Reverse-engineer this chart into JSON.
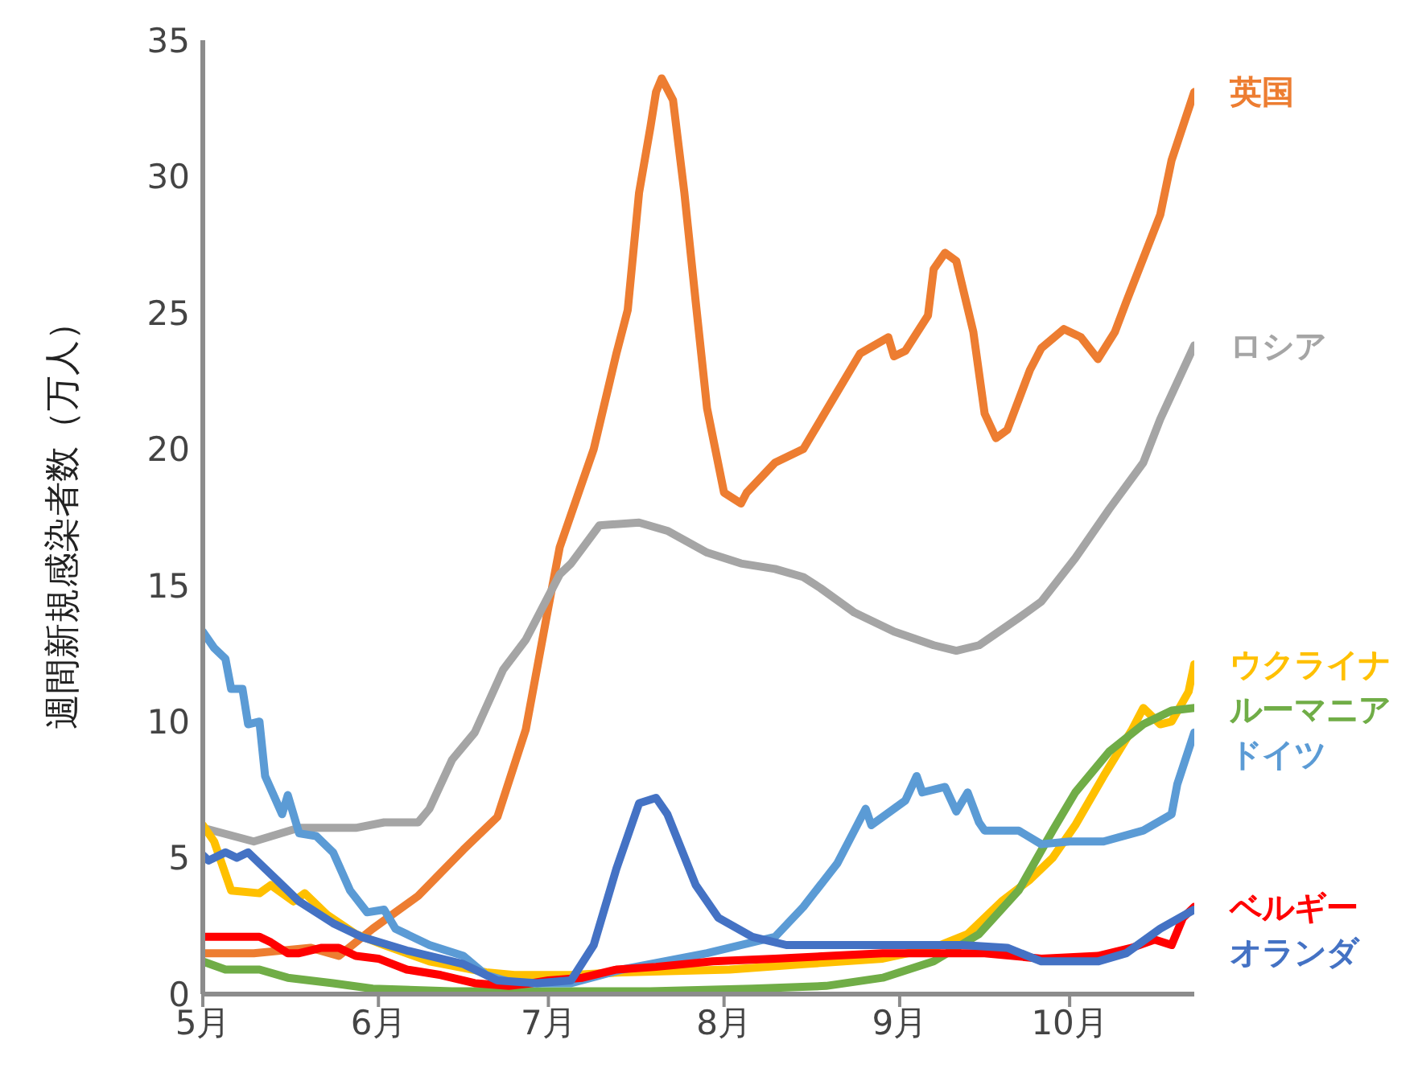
{
  "chart_data": {
    "type": "line",
    "ylabel": "週間新規感染者数（万人）",
    "xlim": [
      "--05-01",
      "--10-23"
    ],
    "xticks": [
      {
        "value": "--05-01",
        "label": "5月"
      },
      {
        "value": "--06-01",
        "label": "6月"
      },
      {
        "value": "--07-01",
        "label": "7月"
      },
      {
        "value": "--08-01",
        "label": "8月"
      },
      {
        "value": "--09-01",
        "label": "9月"
      },
      {
        "value": "--10-01",
        "label": "10月"
      }
    ],
    "ylim": [
      0,
      35
    ],
    "yticks": [
      0,
      5,
      10,
      15,
      20,
      25,
      30,
      35
    ],
    "marker": "none",
    "line_style": "solid",
    "series": [
      {
        "name": "英国",
        "color": "#ed7d31",
        "x": [
          "--05-01",
          "--05-10",
          "--05-20",
          "--05-25",
          "--05-31",
          "--06-08",
          "--06-16",
          "--06-22",
          "--06-27",
          "--07-01",
          "--07-03",
          "--07-05",
          "--07-09",
          "--07-13",
          "--07-15",
          "--07-17",
          "--07-19",
          "--07-20",
          "--07-21",
          "--07-23",
          "--07-25",
          "--07-27",
          "--07-29",
          "--08-01",
          "--08-04",
          "--08-05",
          "--08-10",
          "--08-15",
          "--08-21",
          "--08-25",
          "--08-30",
          "--08-31",
          "--09-02",
          "--09-06",
          "--09-07",
          "--09-09",
          "--09-11",
          "--09-14",
          "--09-16",
          "--09-18",
          "--09-20",
          "--09-24",
          "--09-26",
          "--09-30",
          "--10-03",
          "--10-06",
          "--10-09",
          "--10-11",
          "--10-14",
          "--10-17",
          "--10-19",
          "--10-23"
        ],
        "values": [
          1.5,
          1.5,
          1.7,
          1.4,
          2.4,
          3.6,
          5.3,
          6.5,
          9.7,
          14.2,
          16.4,
          17.6,
          20.0,
          23.5,
          25.1,
          29.4,
          31.8,
          33.1,
          33.6,
          32.8,
          29.4,
          25.4,
          21.5,
          18.4,
          18.0,
          18.4,
          19.5,
          20.0,
          22.1,
          23.5,
          24.1,
          23.4,
          23.6,
          24.9,
          26.6,
          27.2,
          26.9,
          24.3,
          21.3,
          20.4,
          20.7,
          22.9,
          23.7,
          24.4,
          24.1,
          23.3,
          24.3,
          25.4,
          27.0,
          28.6,
          30.6,
          33.1
        ]
      },
      {
        "name": "ロシア",
        "color": "#a5a5a5",
        "x": [
          "--05-01",
          "--05-10",
          "--05-18",
          "--05-28",
          "--06-02",
          "--06-08",
          "--06-10",
          "--06-14",
          "--06-18",
          "--06-23",
          "--06-27",
          "--07-03",
          "--07-05",
          "--07-10",
          "--07-17",
          "--07-22",
          "--07-29",
          "--08-04",
          "--08-10",
          "--08-15",
          "--08-18",
          "--08-24",
          "--08-31",
          "--09-07",
          "--09-11",
          "--09-15",
          "--09-22",
          "--09-26",
          "--10-02",
          "--10-08",
          "--10-14",
          "--10-17",
          "--10-23"
        ],
        "values": [
          6.1,
          5.6,
          6.1,
          6.1,
          6.3,
          6.3,
          6.8,
          8.6,
          9.6,
          11.9,
          13.0,
          15.4,
          15.8,
          17.2,
          17.3,
          17.0,
          16.2,
          15.8,
          15.6,
          15.3,
          14.9,
          14.0,
          13.3,
          12.8,
          12.6,
          12.8,
          13.8,
          14.4,
          16.0,
          17.8,
          19.5,
          21.1,
          23.8
        ]
      },
      {
        "name": "ウクライナ",
        "color": "#ffc000",
        "x": [
          "--05-01",
          "--05-03",
          "--05-06",
          "--05-11",
          "--05-13",
          "--05-17",
          "--05-19",
          "--05-23",
          "--05-28",
          "--06-02",
          "--06-10",
          "--06-20",
          "--06-25",
          "--07-05",
          "--07-14",
          "--08-02",
          "--08-15",
          "--08-29",
          "--09-07",
          "--09-13",
          "--09-19",
          "--09-24",
          "--09-28",
          "--10-02",
          "--10-07",
          "--10-12",
          "--10-14",
          "--10-17",
          "--10-19",
          "--10-22",
          "--10-23"
        ],
        "values": [
          6.2,
          5.6,
          3.8,
          3.7,
          4.0,
          3.4,
          3.7,
          2.9,
          2.2,
          1.8,
          1.2,
          0.8,
          0.7,
          0.7,
          0.8,
          0.9,
          1.1,
          1.3,
          1.7,
          2.2,
          3.4,
          4.2,
          5.0,
          6.2,
          8.0,
          9.7,
          10.5,
          9.9,
          10.0,
          11.1,
          12.1
        ]
      },
      {
        "name": "ルーマニア",
        "color": "#70ad47",
        "x": [
          "--05-01",
          "--05-05",
          "--05-11",
          "--05-16",
          "--05-24",
          "--05-31",
          "--06-14",
          "--07-19",
          "--08-06",
          "--08-19",
          "--08-29",
          "--09-07",
          "--09-15",
          "--09-22",
          "--09-28",
          "--10-02",
          "--10-08",
          "--10-14",
          "--10-19",
          "--10-23"
        ],
        "values": [
          1.2,
          0.9,
          0.9,
          0.6,
          0.4,
          0.2,
          0.1,
          0.1,
          0.2,
          0.3,
          0.6,
          1.2,
          2.2,
          3.8,
          6.0,
          7.4,
          8.9,
          9.9,
          10.4,
          10.5
        ]
      },
      {
        "name": "ドイツ",
        "color": "#5b9bd5",
        "x": [
          "--05-01",
          "--05-03",
          "--05-05",
          "--05-06",
          "--05-08",
          "--05-09",
          "--05-11",
          "--05-12",
          "--05-15",
          "--05-16",
          "--05-18",
          "--05-21",
          "--05-24",
          "--05-27",
          "--05-30",
          "--06-02",
          "--06-04",
          "--06-10",
          "--06-16",
          "--06-20",
          "--06-25",
          "--07-05",
          "--07-14",
          "--07-29",
          "--08-10",
          "--08-15",
          "--08-21",
          "--08-24",
          "--08-26",
          "--08-27",
          "--09-02",
          "--09-04",
          "--09-05",
          "--09-09",
          "--09-11",
          "--09-13",
          "--09-15",
          "--09-16",
          "--09-22",
          "--09-26",
          "--10-01",
          "--10-07",
          "--10-14",
          "--10-19",
          "--10-20",
          "--10-23"
        ],
        "values": [
          13.3,
          12.7,
          12.3,
          11.2,
          11.2,
          9.9,
          10.0,
          8.0,
          6.6,
          7.3,
          5.9,
          5.8,
          5.2,
          3.8,
          3.0,
          3.1,
          2.4,
          1.8,
          1.4,
          0.7,
          0.4,
          0.4,
          0.9,
          1.5,
          2.1,
          3.2,
          4.8,
          6.0,
          6.8,
          6.2,
          7.1,
          8.0,
          7.4,
          7.6,
          6.7,
          7.4,
          6.3,
          6.0,
          6.0,
          5.5,
          5.6,
          5.6,
          6.0,
          6.6,
          7.7,
          9.6
        ]
      },
      {
        "name": "ベルギー",
        "color": "#ff0000",
        "x": [
          "--05-01",
          "--05-11",
          "--05-13",
          "--05-16",
          "--05-18",
          "--05-22",
          "--05-25",
          "--05-28",
          "--06-01",
          "--06-06",
          "--06-12",
          "--06-18",
          "--06-24",
          "--06-28",
          "--07-01",
          "--07-07",
          "--07-13",
          "--07-20",
          "--07-30",
          "--08-10",
          "--08-29",
          "--09-16",
          "--09-26",
          "--10-06",
          "--10-12",
          "--10-16",
          "--10-19",
          "--10-21",
          "--10-23"
        ],
        "values": [
          2.1,
          2.1,
          1.9,
          1.5,
          1.5,
          1.7,
          1.7,
          1.4,
          1.3,
          0.9,
          0.7,
          0.4,
          0.3,
          0.4,
          0.5,
          0.6,
          0.9,
          1.0,
          1.2,
          1.3,
          1.5,
          1.5,
          1.3,
          1.4,
          1.7,
          2.0,
          1.8,
          2.8,
          3.2
        ]
      },
      {
        "name": "オランダ",
        "color": "#4472c4",
        "x": [
          "--05-01",
          "--05-02",
          "--05-05",
          "--05-07",
          "--05-09",
          "--05-12",
          "--05-14",
          "--05-18",
          "--05-24",
          "--05-29",
          "--06-06",
          "--06-16",
          "--06-22",
          "--06-29",
          "--07-05",
          "--07-09",
          "--07-13",
          "--07-17",
          "--07-20",
          "--07-22",
          "--07-27",
          "--07-31",
          "--08-06",
          "--08-12",
          "--08-24",
          "--09-12",
          "--09-20",
          "--09-26",
          "--10-06",
          "--10-11",
          "--10-17",
          "--10-23"
        ],
        "values": [
          5.1,
          4.9,
          5.2,
          5.0,
          5.2,
          4.6,
          4.2,
          3.4,
          2.6,
          2.1,
          1.6,
          1.1,
          0.5,
          0.4,
          0.5,
          1.8,
          4.6,
          7.0,
          7.2,
          6.6,
          4.0,
          2.8,
          2.1,
          1.8,
          1.8,
          1.8,
          1.7,
          1.2,
          1.2,
          1.5,
          2.4,
          3.1
        ]
      }
    ]
  }
}
